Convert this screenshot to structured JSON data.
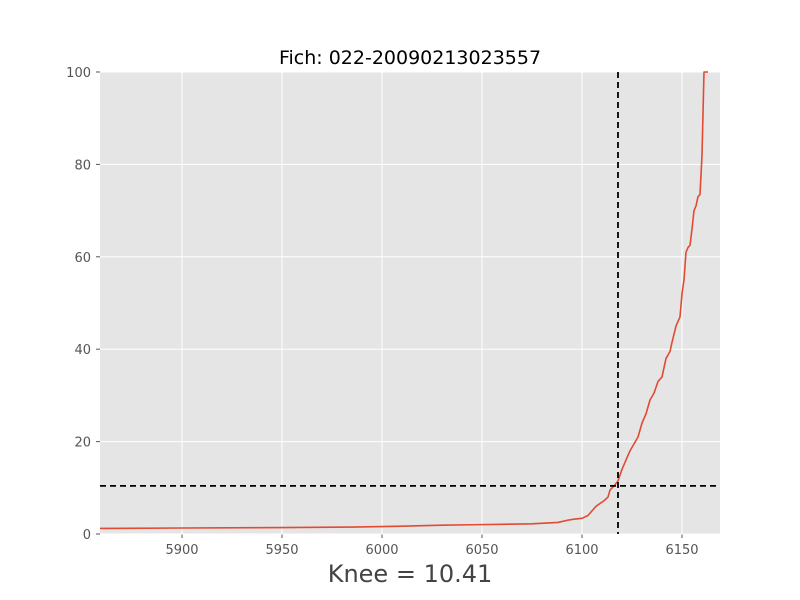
{
  "chart_data": {
    "type": "line",
    "title": "Fich: 022-20090213023557",
    "xlabel": "Knee = 10.41",
    "ylabel": "",
    "xlim": [
      5859,
      6169
    ],
    "ylim": [
      0,
      100
    ],
    "xticks": [
      5900,
      5950,
      6000,
      6050,
      6100,
      6150
    ],
    "yticks": [
      0,
      20,
      40,
      60,
      80,
      100
    ],
    "grid": true,
    "background": "#e5e5e5",
    "series_color": "#e24a33",
    "knee": {
      "x": 6118,
      "y": 10.41,
      "color": "#000000",
      "style": "dashed"
    },
    "series": [
      {
        "x": [
          5859,
          5900,
          5950,
          5985,
          6000,
          6010,
          6030,
          6045,
          6060,
          6075,
          6088,
          6093,
          6096,
          6100,
          6103,
          6105,
          6107,
          6109,
          6111,
          6113,
          6114,
          6116,
          6118,
          6120,
          6122,
          6124,
          6126,
          6128,
          6130,
          6131,
          6132,
          6134,
          6136,
          6138,
          6140,
          6142,
          6144,
          6145,
          6147,
          6149,
          6150,
          6151,
          6152,
          6153,
          6154,
          6155,
          6156,
          6157,
          6158,
          6159,
          6160,
          6161,
          6162,
          6162.5,
          6163
        ],
        "y": [
          1.2,
          1.3,
          1.4,
          1.5,
          1.6,
          1.7,
          1.9,
          2.0,
          2.1,
          2.2,
          2.5,
          3.0,
          3.2,
          3.4,
          4.0,
          5.0,
          6.0,
          6.6,
          7.2,
          8.0,
          9.5,
          10.4,
          11.5,
          14.0,
          16.0,
          18.0,
          19.5,
          21.0,
          24.0,
          25.0,
          26.0,
          29.0,
          30.5,
          33.0,
          34.0,
          38.0,
          39.5,
          41.5,
          45.0,
          47.0,
          52.0,
          55.0,
          61.0,
          62.0,
          62.5,
          66.0,
          70.0,
          71.0,
          73.0,
          73.5,
          82.0,
          100.0,
          100.0,
          100.0,
          100.0
        ]
      }
    ]
  }
}
